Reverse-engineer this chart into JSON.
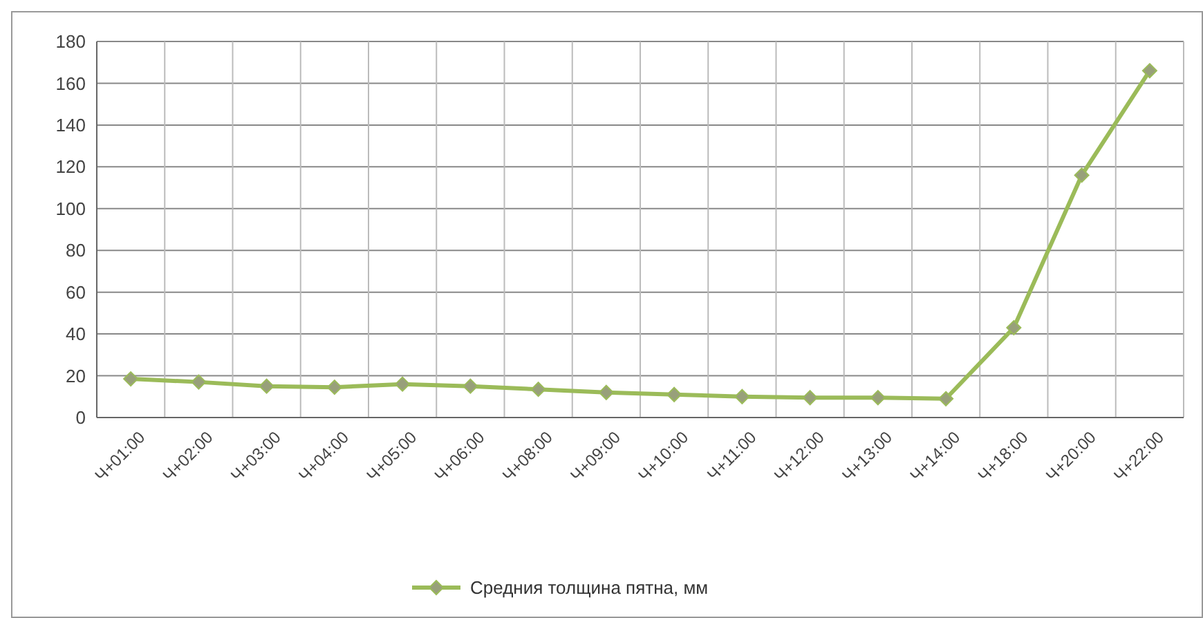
{
  "chart_data": {
    "type": "line",
    "categories": [
      "Ч+01:00",
      "Ч+02:00",
      "Ч+03:00",
      "Ч+04:00",
      "Ч+05:00",
      "Ч+06:00",
      "Ч+08:00",
      "Ч+09:00",
      "Ч+10:00",
      "Ч+11:00",
      "Ч+12:00",
      "Ч+13:00",
      "Ч+14:00",
      "Ч+18:00",
      "Ч+20:00",
      "Ч+22:00"
    ],
    "series": [
      {
        "name": "Средния толщина пятна, мм",
        "color": "#9bbb59",
        "values": [
          18.5,
          17,
          15,
          14.5,
          16,
          15,
          13.5,
          12,
          11,
          10,
          9.5,
          9.5,
          9,
          43,
          116,
          166
        ]
      }
    ],
    "ylim": [
      0,
      180
    ],
    "yticks": [
      0,
      20,
      40,
      60,
      80,
      100,
      120,
      140,
      160,
      180
    ],
    "grid": true,
    "legend": "bottom",
    "marker": "diamond",
    "line_style": "solid"
  }
}
